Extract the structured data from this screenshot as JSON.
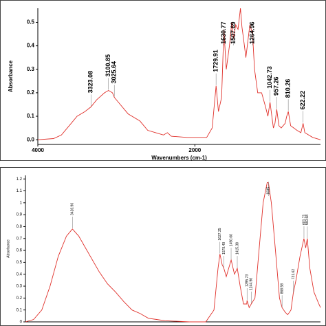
{
  "chart_data": [
    {
      "type": "line",
      "ylabel": "Absorbance",
      "xlabel": "Wavenumbers (cm-1)",
      "xlim": [
        4000,
        400
      ],
      "ylim": [
        -0.02,
        0.56
      ],
      "xticks": [
        4000,
        2000
      ],
      "yticks": [
        {
          "value": 0,
          "label": "0.0"
        },
        0.1,
        0.2,
        0.3,
        0.4,
        0.5
      ],
      "series": [
        {
          "color": "#e0302a",
          "x": [
            4000,
            3800,
            3700,
            3600,
            3500,
            3400,
            3323,
            3250,
            3150,
            3100,
            3050,
            3025,
            2950,
            2850,
            2700,
            2600,
            2500,
            2400,
            2350,
            2300,
            2100,
            2000,
            1850,
            1780,
            1730,
            1700,
            1660,
            1631,
            1600,
            1560,
            1530,
            1508,
            1480,
            1450,
            1420,
            1400,
            1380,
            1350,
            1300,
            1265,
            1240,
            1200,
            1150,
            1100,
            1070,
            1043,
            1000,
            980,
            957,
            930,
            900,
            850,
            830,
            810,
            780,
            700,
            650,
            622,
            600,
            500,
            400
          ],
          "values": [
            0,
            0.005,
            0.02,
            0.06,
            0.1,
            0.12,
            0.14,
            0.17,
            0.2,
            0.21,
            0.2,
            0.18,
            0.15,
            0.11,
            0.08,
            0.04,
            0.03,
            0.02,
            0.03,
            0.015,
            0.01,
            0.01,
            0.01,
            0.05,
            0.23,
            0.12,
            0.18,
            0.47,
            0.3,
            0.4,
            0.5,
            0.43,
            0.49,
            0.47,
            0.56,
            0.48,
            0.43,
            0.35,
            0.49,
            0.45,
            0.3,
            0.2,
            0.2,
            0.14,
            0.1,
            0.16,
            0.05,
            0.07,
            0.13,
            0.06,
            0.05,
            0.07,
            0.1,
            0.12,
            0.06,
            0.04,
            0.03,
            0.07,
            0.03,
            0.01,
            0
          ]
        }
      ],
      "annotations": [
        {
          "value": 3323.08,
          "label": "3323.08"
        },
        {
          "value": 3100.85,
          "label": "3100.85"
        },
        {
          "value": 3025.64,
          "label": "3025.64"
        },
        {
          "value": 1729.91,
          "label": "1729.91"
        },
        {
          "value": 1630.77,
          "label": "1630.77"
        },
        {
          "value": 1507.69,
          "label": "1507.69"
        },
        {
          "value": 1264.96,
          "label": "1264.96"
        },
        {
          "value": 1042.73,
          "label": "1042.73"
        },
        {
          "value": 957.26,
          "label": "957.26"
        },
        {
          "value": 810.26,
          "label": "810.26"
        },
        {
          "value": 622.22,
          "label": "622.22"
        }
      ]
    },
    {
      "type": "line",
      "ylabel": "Absorbance",
      "xlim": [
        4000,
        400
      ],
      "ylim": [
        0,
        1.23
      ],
      "yticks": [
        0,
        0.1,
        0.2,
        0.3,
        0.4,
        0.5,
        0.6,
        0.7,
        0.8,
        0.9,
        1,
        1.1,
        1.2
      ],
      "series": [
        {
          "color": "#e0302a",
          "x": [
            4000,
            3900,
            3800,
            3700,
            3600,
            3500,
            3427,
            3350,
            3250,
            3100,
            3000,
            2900,
            2800,
            2700,
            2600,
            2500,
            2400,
            2300,
            2000,
            1800,
            1700,
            1650,
            1627,
            1600,
            1579,
            1550,
            1520,
            1490,
            1450,
            1415,
            1380,
            1340,
            1300,
            1296,
            1270,
            1245,
            1200,
            1150,
            1100,
            1050,
            1035,
            1000,
            950,
            900,
            869,
            830,
            800,
            760,
            732,
            700,
            650,
            602,
            580,
            561,
            530,
            480,
            420,
            400
          ],
          "values": [
            0,
            0.02,
            0.1,
            0.3,
            0.55,
            0.72,
            0.78,
            0.72,
            0.6,
            0.42,
            0.32,
            0.25,
            0.17,
            0.1,
            0.07,
            0.03,
            0.02,
            0.01,
            0,
            0,
            0.1,
            0.45,
            0.57,
            0.48,
            0.45,
            0.38,
            0.45,
            0.52,
            0.4,
            0.45,
            0.3,
            0.15,
            0.15,
            0.18,
            0.12,
            0.15,
            0.2,
            0.6,
            1,
            1.17,
            1.17,
            1,
            0.6,
            0.2,
            0.12,
            0.08,
            0.06,
            0.1,
            0.24,
            0.35,
            0.55,
            0.7,
            0.62,
            0.7,
            0.45,
            0.25,
            0.15,
            0.12
          ]
        }
      ],
      "annotations": [
        {
          "value": 3426.9,
          "label": "3426.90"
        },
        {
          "value": 1627.35,
          "label": "1627.35"
        },
        {
          "value": 1579.49,
          "label": "1579.49"
        },
        {
          "value": 1490.6,
          "label": "1490.60"
        },
        {
          "value": 1415.38,
          "label": "1415.38"
        },
        {
          "value": 1295.73,
          "label": "1295.73"
        },
        {
          "value": 1244.96,
          "label": "1244.96"
        },
        {
          "value": 1035,
          "label": "1035"
        },
        {
          "value": 868.58,
          "label": "868.58"
        },
        {
          "value": 731.62,
          "label": "731.62"
        },
        {
          "value": 601.71,
          "label": "601.71"
        },
        {
          "value": 560.68,
          "label": "560.68"
        }
      ]
    }
  ]
}
